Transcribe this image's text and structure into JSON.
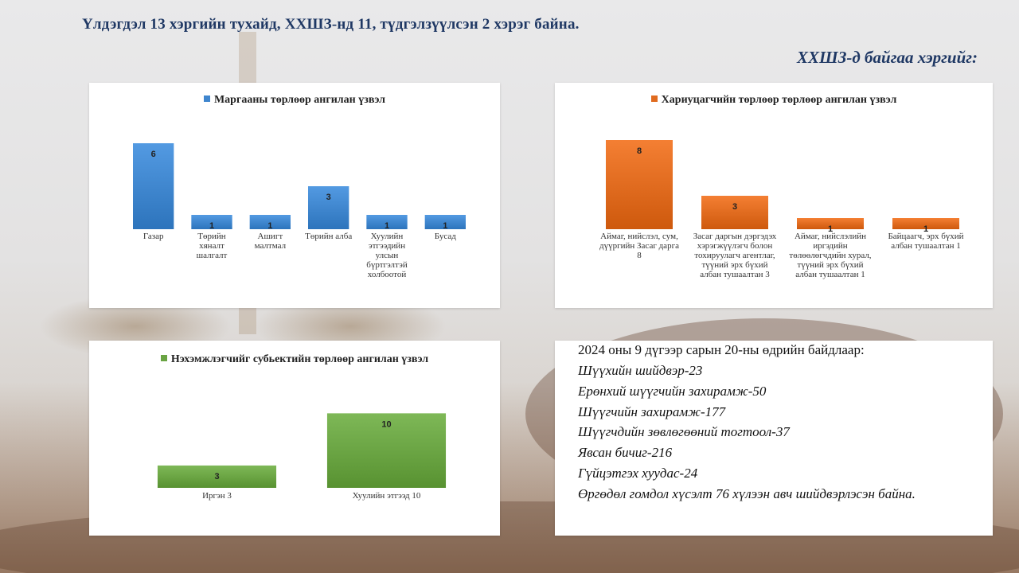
{
  "header": {
    "title": "Үлдэгдэл 13 хэргийн тухайд,  ХХШЗ-нд 11, түдгэлзүүлсэн 2 хэрэг байна.",
    "subtitle": "ХХШЗ-д байгаа хэргийг:"
  },
  "colors": {
    "blue": "#3f86ce",
    "orange": "#e06b1f",
    "green": "#6aa443",
    "title_text": "#1f3864"
  },
  "chart_data": [
    {
      "type": "bar",
      "title": "Маргааны төрлөөр ангилан үзвэл",
      "categories": [
        "Газар",
        "Төрийн хяналт шалгалт",
        "Ашигт малтмал",
        "Төрийн алба",
        "Хуулийн этгээдийн улсын бүртгэлтэй холбоотой",
        "Бусад"
      ],
      "category_lines": [
        [
          "Газар"
        ],
        [
          "Төрийн",
          "хяналт",
          "шалгалт"
        ],
        [
          "Ашигт",
          "малтмал"
        ],
        [
          "Төрийн алба"
        ],
        [
          "Хуулийн",
          "этгээдийн",
          "улсын",
          "бүртгэлтэй",
          "холбоотой"
        ],
        [
          "Бусад"
        ]
      ],
      "values": [
        6,
        1,
        1,
        3,
        1,
        1
      ],
      "ylim": [
        0,
        7
      ],
      "color": "#3f86ce",
      "legend": "top"
    },
    {
      "type": "bar",
      "title": "Хариуцагчийн төрлөөр төрлөөр ангилан үзвэл",
      "categories": [
        "Аймаг, нийслэл, сум, дүүргийн Засаг дарга 8",
        "Засаг даргын дэргэдэх хэрэгжүүлэгч болон тохируулагч агентлаг, түүний эрх бүхий албан тушаалтан 3",
        "Аймаг, нийслэлийн иргэдийн төлөөлөгчдийн хурал, түүний эрх бүхий албан тушаалтан 1",
        "Байцаагч, эрх бүхий албан тушаалтан 1"
      ],
      "category_lines": [
        [
          "Аймаг, нийслэл, сум,",
          "дүүргийн Засаг дарга",
          "8"
        ],
        [
          "Засаг даргын дэргэдэх",
          "хэрэгжүүлэгч болон",
          "тохируулагч агентлаг,",
          "түүний эрх бүхий",
          "албан тушаалтан 3"
        ],
        [
          "Аймаг, нийслэлийн",
          "иргэдийн",
          "төлөөлөгчдийн хурал,",
          "түүний эрх бүхий",
          "албан тушаалтан 1"
        ],
        [
          "Байцаагч, эрх бүхий",
          "албан тушаалтан 1"
        ]
      ],
      "values": [
        8,
        3,
        1,
        1
      ],
      "ylim": [
        0,
        9
      ],
      "color": "#e06b1f",
      "legend": "top"
    },
    {
      "type": "bar",
      "title": "Нэхэмжлэгчийг субьектийн төрлөөр ангилан үзвэл",
      "categories": [
        "Иргэн 3",
        "Хуулийн этгээд 10"
      ],
      "category_lines": [
        [
          "Иргэн 3"
        ],
        [
          "Хуулийн этгээд 10"
        ]
      ],
      "values": [
        3,
        10
      ],
      "ylim": [
        0,
        11
      ],
      "color": "#6aa443",
      "legend": "top"
    }
  ],
  "info": {
    "heading": "2024  оны 9 дүгээр сарын 20-ны өдрийн байдлаар:",
    "lines": [
      "Шүүхийн шийдвэр-23",
      "Ерөнхий шүүгчийн захирамж-50",
      "Шүүгчийн захирамж-177",
      "Шүүгчдийн зөвлөгөөний тогтоол-37",
      "Явсан бичиг-216",
      "Гүйцэтгэх хуудас-24",
      "Өргөдөл гомдол хүсэлт 76 хүлээн авч шийдвэрлэсэн байна."
    ]
  }
}
